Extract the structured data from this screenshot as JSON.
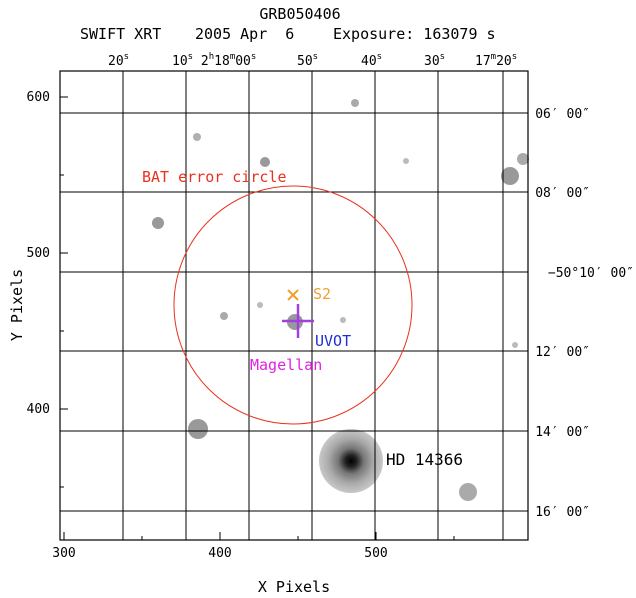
{
  "header": {
    "title": "GRB050406",
    "instrument": "SWIFT XRT",
    "date": "2005 Apr  6",
    "exposure": "Exposure: 163079 s"
  },
  "axes": {
    "xlabel": "X Pixels",
    "ylabel": "Y Pixels",
    "x_ticks": [
      "300",
      "400",
      "500"
    ],
    "y_ticks": [
      "400",
      "500",
      "600"
    ],
    "ra_ticks": [
      {
        "main": "20",
        "sup": "s"
      },
      {
        "main": "10",
        "sup": "s"
      },
      {
        "main": "2",
        "sup": "h"
      },
      {
        "main": "18",
        "sup": "m"
      },
      {
        "main": "00",
        "sup": "s"
      },
      {
        "main": "50",
        "sup": "s"
      },
      {
        "main": "40",
        "sup": "s"
      },
      {
        "main": "30",
        "sup": "s"
      },
      {
        "main": "17",
        "sup": "m"
      },
      {
        "main": "20",
        "sup": "s"
      }
    ],
    "dec_ticks": [
      "06′ 00″",
      "08′ 00″",
      "−50°10′ 00″",
      "12′ 00″",
      "14′ 00″",
      "16′ 00″"
    ]
  },
  "annotations": {
    "bat_circle": "BAT error circle",
    "s2": "S2",
    "uvot": "UVOT",
    "magellan": "Magellan",
    "hd": "HD 14366"
  },
  "colors": {
    "bat": "#e8321e",
    "s2": "#f0a030",
    "uvot": "#2030d0",
    "magellan": "#e020e0",
    "cross": "#a040e0"
  }
}
